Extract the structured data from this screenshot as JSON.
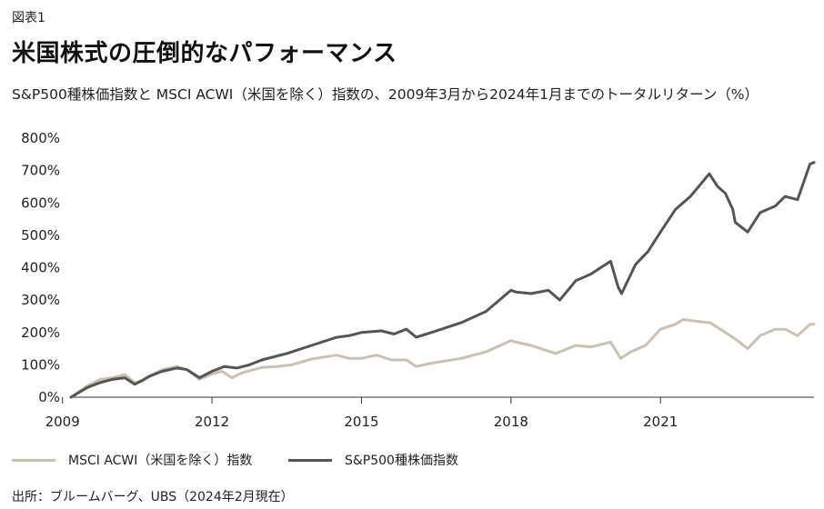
{
  "header": {
    "figure_label": "図表1",
    "title": "米国株式の圧倒的なパフォーマンス",
    "subtitle": "S&P500種株価指数と MSCI ACWI（米国を除く）指数の、2009年3月から2024年1月までのトータルリターン（%）"
  },
  "footer": {
    "source": "出所：ブルームバーグ、UBS（2024年2月現在）"
  },
  "chart_data": {
    "type": "line",
    "title": "",
    "xlabel": "",
    "ylabel": "",
    "xlim": [
      2009.17,
      2024.08
    ],
    "ylim": [
      0,
      800
    ],
    "x_ticks": [
      2009,
      2012,
      2015,
      2018,
      2021
    ],
    "x_tick_labels": [
      "2009",
      "2012",
      "2015",
      "2018",
      "2021"
    ],
    "y_ticks": [
      0,
      100,
      200,
      300,
      400,
      500,
      600,
      700,
      800
    ],
    "y_tick_labels": [
      "0%",
      "100%",
      "200%",
      "300%",
      "400%",
      "500%",
      "600%",
      "700%",
      "800%"
    ],
    "grid": false,
    "legend_position": "bottom",
    "series": [
      {
        "name": "MSCI ACWI（米国を除く）指数",
        "color": "#c9c1b3",
        "x": [
          2009.17,
          2009.5,
          2009.75,
          2010.0,
          2010.25,
          2010.45,
          2010.6,
          2010.75,
          2011.0,
          2011.3,
          2011.5,
          2011.75,
          2012.0,
          2012.2,
          2012.4,
          2012.6,
          2013.0,
          2013.3,
          2013.6,
          2014.0,
          2014.5,
          2014.75,
          2015.0,
          2015.3,
          2015.6,
          2015.9,
          2016.1,
          2016.4,
          2016.6,
          2017.0,
          2017.5,
          2018.0,
          2018.1,
          2018.4,
          2018.9,
          2019.3,
          2019.6,
          2020.0,
          2020.2,
          2020.4,
          2020.7,
          2021.0,
          2021.3,
          2021.45,
          2021.7,
          2022.0,
          2022.3,
          2022.5,
          2022.75,
          2023.0,
          2023.3,
          2023.5,
          2023.75,
          2024.0,
          2024.08
        ],
        "values": [
          0,
          35,
          55,
          60,
          70,
          45,
          50,
          65,
          85,
          95,
          85,
          55,
          72,
          80,
          60,
          75,
          92,
          95,
          100,
          118,
          130,
          120,
          120,
          130,
          115,
          115,
          95,
          105,
          110,
          120,
          140,
          175,
          170,
          160,
          135,
          160,
          155,
          170,
          120,
          140,
          160,
          210,
          225,
          240,
          235,
          230,
          200,
          180,
          150,
          190,
          210,
          210,
          190,
          225,
          225
        ]
      },
      {
        "name": "S&P500種株価指数",
        "color": "#555555",
        "x": [
          2009.17,
          2009.5,
          2009.75,
          2010.0,
          2010.25,
          2010.45,
          2010.6,
          2010.75,
          2011.0,
          2011.3,
          2011.5,
          2011.75,
          2012.0,
          2012.25,
          2012.5,
          2012.75,
          2013.0,
          2013.5,
          2014.0,
          2014.5,
          2014.75,
          2015.0,
          2015.4,
          2015.65,
          2015.9,
          2016.1,
          2016.4,
          2016.7,
          2017.0,
          2017.5,
          2018.0,
          2018.1,
          2018.4,
          2018.75,
          2018.98,
          2019.3,
          2019.6,
          2020.0,
          2020.15,
          2020.22,
          2020.5,
          2020.75,
          2021.0,
          2021.3,
          2021.6,
          2021.98,
          2022.15,
          2022.3,
          2022.45,
          2022.5,
          2022.75,
          2023.0,
          2023.3,
          2023.5,
          2023.75,
          2024.0,
          2024.08
        ],
        "values": [
          0,
          30,
          45,
          55,
          60,
          40,
          52,
          65,
          80,
          90,
          85,
          60,
          80,
          95,
          90,
          100,
          115,
          135,
          160,
          185,
          190,
          200,
          205,
          195,
          210,
          185,
          200,
          215,
          230,
          265,
          330,
          325,
          320,
          330,
          300,
          360,
          380,
          420,
          340,
          320,
          410,
          450,
          510,
          580,
          620,
          690,
          650,
          630,
          580,
          540,
          510,
          570,
          590,
          620,
          610,
          720,
          725
        ]
      }
    ]
  }
}
